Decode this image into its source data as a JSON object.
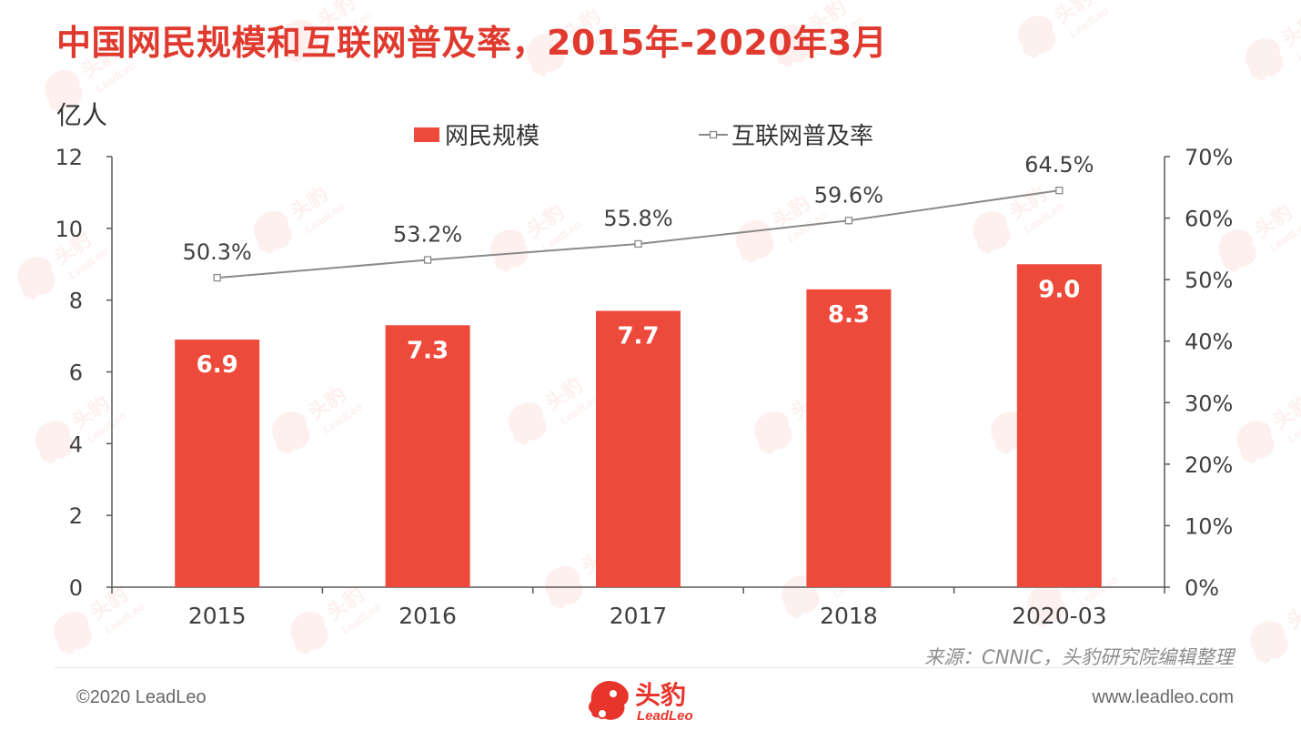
{
  "page": {
    "title": "中国网民规模和互联网普及率，2015年-2020年3月",
    "source": "来源：CNNIC，头豹研究院编辑整理",
    "copyright": "©2020 LeadLeo",
    "website": "www.leadleo.com",
    "logo_cn": "头豹",
    "logo_en": "LeadLeo",
    "accent_color": "#e03a2f",
    "watermark_icon": "leopard-logo-icon"
  },
  "chart_data": {
    "type": "bar",
    "title": "中国网民规模和互联网普及率，2015年-2020年3月",
    "ylabel": "亿人",
    "categories": [
      "2015",
      "2016",
      "2017",
      "2018",
      "2020-03"
    ],
    "ylim": [
      0,
      12
    ],
    "yticks": [
      "0",
      "2",
      "4",
      "6",
      "8",
      "10",
      "12"
    ],
    "y2lim": [
      0,
      70
    ],
    "y2ticks": [
      "0%",
      "10%",
      "20%",
      "30%",
      "40%",
      "50%",
      "60%",
      "70%"
    ],
    "legend_position": "top-center",
    "grid": false,
    "series": [
      {
        "name": "网民规模",
        "type": "bar",
        "axis": "left",
        "color": "#ee4a3b",
        "values": [
          6.9,
          7.3,
          7.7,
          8.3,
          9.0
        ],
        "labels": [
          "6.9",
          "7.3",
          "7.7",
          "8.3",
          "9.0"
        ]
      },
      {
        "name": "互联网普及率",
        "type": "line",
        "axis": "right",
        "color": "#8a8a8a",
        "values": [
          50.3,
          53.2,
          55.8,
          59.6,
          64.5
        ],
        "labels": [
          "50.3%",
          "53.2%",
          "55.8%",
          "59.6%",
          "64.5%"
        ]
      }
    ]
  }
}
